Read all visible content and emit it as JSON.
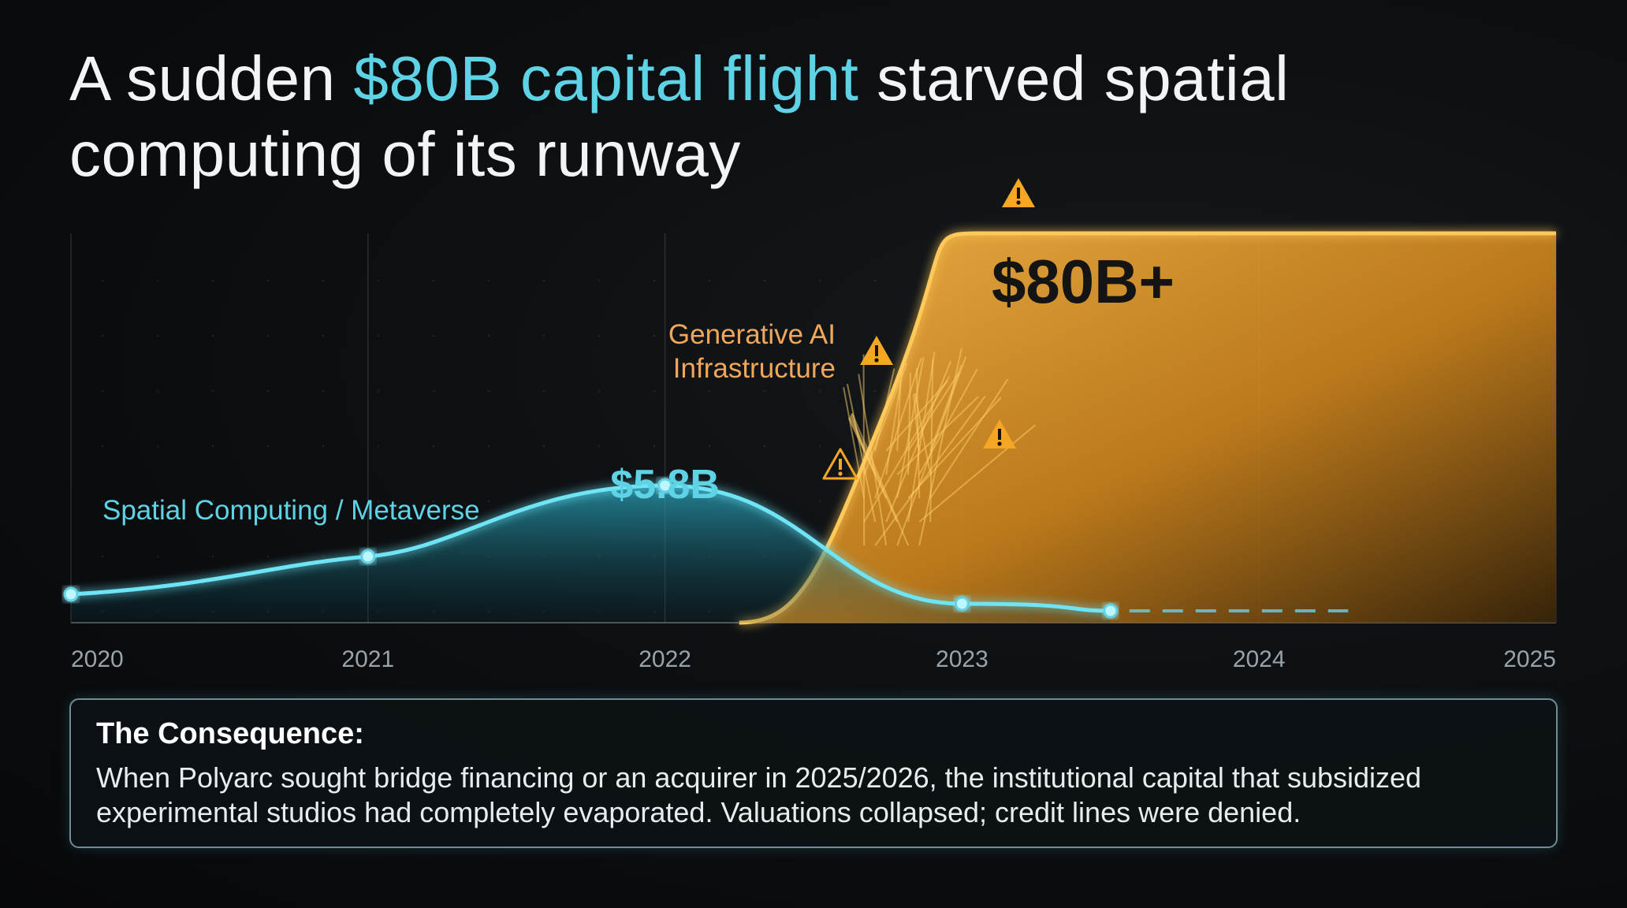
{
  "headline": {
    "before": "A sudden ",
    "highlight": "$80B capital flight",
    "after": " starved spatial computing of its runway"
  },
  "colors": {
    "background": "#0b0d0f",
    "spatial": "#5fd3e6",
    "ai": "#f5a623",
    "ai_label": "#f0a75a",
    "text": "#f2f4f5"
  },
  "chart_data": {
    "type": "area",
    "x_ticks": [
      "2020",
      "2021",
      "2022",
      "2023",
      "2024",
      "2025"
    ],
    "xlim": [
      2020,
      2025
    ],
    "grid": true,
    "series": [
      {
        "name": "Spatial Computing / Metaverse",
        "color": "#5fd3e6",
        "x": [
          2020,
          2021,
          2022,
          2023,
          2023.5
        ],
        "y": [
          1.2,
          2.8,
          5.8,
          0.8,
          0.5
        ],
        "peak_label": "$5.8B",
        "continuation": "dashed"
      },
      {
        "name": "Generative AI Infrastructure",
        "color": "#f5a623",
        "x": [
          2022.25,
          2022.5,
          2022.75,
          2023,
          2025
        ],
        "y": [
          0,
          8,
          45,
          80,
          80
        ],
        "value_label": "$80B+"
      }
    ],
    "annotation_icons": [
      "warning-icon",
      "warning-icon",
      "warning-icon",
      "warning-icon"
    ]
  },
  "callout": {
    "title": "The Consequence:",
    "body": "When Polyarc sought bridge financing or an acquirer in 2025/2026, the institutional capital that subsidized experimental studios had completely evaporated. Valuations collapsed; credit lines were denied."
  }
}
